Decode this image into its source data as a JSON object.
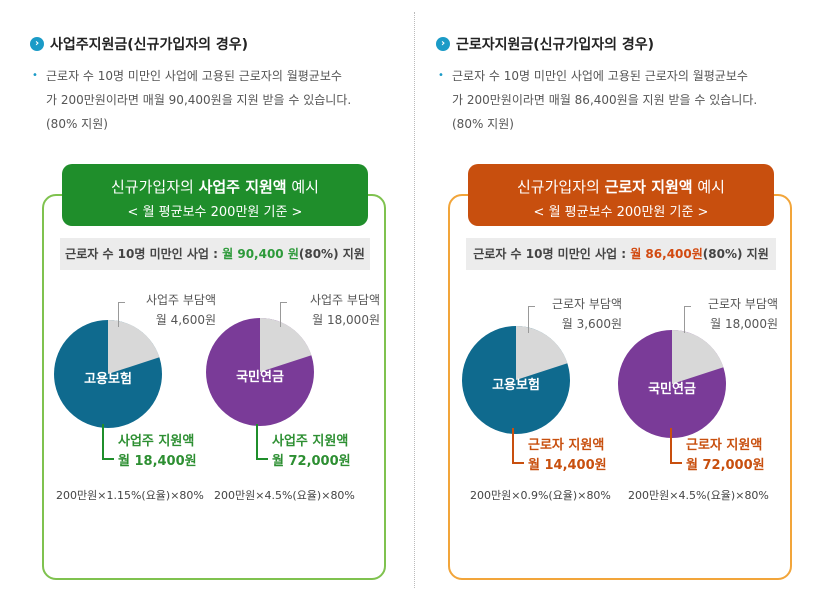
{
  "left": {
    "heading": "사업주지원금(신규가입자의 경우)",
    "desc_line1": "근로자 수 10명 미만인 사업에 고용된 근로자의 월평균보수",
    "desc_line2": "가 200만원이라면 매월 90,400원을 지원 받을 수 있습니다.",
    "desc_line3": "(80% 지원)",
    "banner_pre": "신규가입자의 ",
    "banner_bold": "사업주 지원액",
    "banner_post": " 예시",
    "banner_sub": "< 월 평균보수 200만원 기준 >",
    "summary_pre": "근로자 수 10명 미만인 사업 : ",
    "summary_amt": "월 90,400 원",
    "summary_post": "(80%) 지원",
    "pie1": {
      "label": "고용보험",
      "share_title": "사업주 부담액",
      "share_amt": "월 4,600원",
      "support_title": "사업주 지원액",
      "support_amt": "월 18,400원",
      "formula": "200만원×1.15%(요율)×80%",
      "support_fraction": 0.8
    },
    "pie2": {
      "label": "국민연금",
      "share_title": "사업주 부담액",
      "share_amt": "월 18,000원",
      "support_title": "사업주 지원액",
      "support_amt": "월 72,000원",
      "formula": "200만원×4.5%(요율)×80%",
      "support_fraction": 0.8
    }
  },
  "right": {
    "heading": "근로자지원금(신규가입자의 경우)",
    "desc_line1": "근로자 수 10명 미만인 사업에 고용된 근로자의 월평균보수",
    "desc_line2": "가 200만원이라면 매월 86,400원을 지원 받을 수 있습니다.",
    "desc_line3": "(80% 지원)",
    "banner_pre": "신규가입자의 ",
    "banner_bold": "근로자 지원액",
    "banner_post": " 예시",
    "banner_sub": "< 월 평균보수 200만원 기준 >",
    "summary_pre": "근로자 수 10명 미만인 사업 : ",
    "summary_amt": "월 86,400원",
    "summary_post": "(80%) 지원",
    "pie1": {
      "label": "고용보험",
      "share_title": "근로자 부담액",
      "share_amt": "월 3,600원",
      "support_title": "근로자 지원액",
      "support_amt": "월 14,400원",
      "formula": "200만원×0.9%(요율)×80%",
      "support_fraction": 0.8
    },
    "pie2": {
      "label": "국민연금",
      "share_title": "근로자 부담액",
      "share_amt": "월 18,000원",
      "support_title": "근로자 지원액",
      "support_amt": "월 72,000원",
      "formula": "200만원×4.5%(요율)×80%",
      "support_fraction": 0.8
    }
  },
  "colors": {
    "blue_pie": "#0f6a8e",
    "purple_pie": "#7a3b98",
    "share_gray": "#d8d8d8",
    "green": "#1f8e2b",
    "orange": "#c84f0e"
  }
}
